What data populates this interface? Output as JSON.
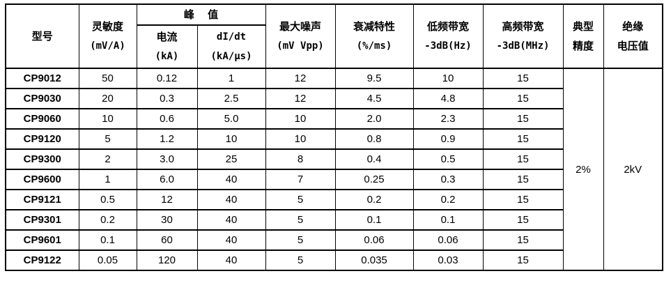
{
  "page": {
    "background_color": "#ffffff",
    "border_color": "#000000",
    "text_color": "#000000"
  },
  "table": {
    "headers": {
      "model": "型号",
      "sensitivity_l1": "灵敏度",
      "sensitivity_l2": "(mV/A)",
      "peak": "峰 值",
      "current_l1": "电流",
      "current_l2": "(kA)",
      "didt_l1": "dI/dt",
      "didt_l2": "(kA/μs)",
      "noise_l1": "最大噪声",
      "noise_l2": "(mV Vpp)",
      "attenuation_l1": "衰减特性",
      "attenuation_l2": "(%/ms)",
      "low_bw_l1": "低频带宽",
      "low_bw_l2": "-3dB(Hz)",
      "high_bw_l1": "高频带宽",
      "high_bw_l2": "-3dB(MHz)",
      "accuracy_l1": "典型",
      "accuracy_l2": "精度",
      "insulation_l1": "绝缘",
      "insulation_l2": "电压值"
    },
    "rows": [
      {
        "model": "CP9012",
        "sensitivity": "50",
        "current": "0.12",
        "didt": "1",
        "noise": "12",
        "attenuation": "9.5",
        "low_bw": "10",
        "high_bw": "15"
      },
      {
        "model": "CP9030",
        "sensitivity": "20",
        "current": "0.3",
        "didt": "2.5",
        "noise": "12",
        "attenuation": "4.5",
        "low_bw": "4.8",
        "high_bw": "15"
      },
      {
        "model": "CP9060",
        "sensitivity": "10",
        "current": "0.6",
        "didt": "5.0",
        "noise": "10",
        "attenuation": "2.0",
        "low_bw": "2.3",
        "high_bw": "15"
      },
      {
        "model": "CP9120",
        "sensitivity": "5",
        "current": "1.2",
        "didt": "10",
        "noise": "10",
        "attenuation": "0.8",
        "low_bw": "0.9",
        "high_bw": "15"
      },
      {
        "model": "CP9300",
        "sensitivity": "2",
        "current": "3.0",
        "didt": "25",
        "noise": "8",
        "attenuation": "0.4",
        "low_bw": "0.5",
        "high_bw": "15"
      },
      {
        "model": "CP9600",
        "sensitivity": "1",
        "current": "6.0",
        "didt": "40",
        "noise": "7",
        "attenuation": "0.25",
        "low_bw": "0.3",
        "high_bw": "15"
      },
      {
        "model": "CP9121",
        "sensitivity": "0.5",
        "current": "12",
        "didt": "40",
        "noise": "5",
        "attenuation": "0.2",
        "low_bw": "0.2",
        "high_bw": "15"
      },
      {
        "model": "CP9301",
        "sensitivity": "0.2",
        "current": "30",
        "didt": "40",
        "noise": "5",
        "attenuation": "0.1",
        "low_bw": "0.1",
        "high_bw": "15"
      },
      {
        "model": "CP9601",
        "sensitivity": "0.1",
        "current": "60",
        "didt": "40",
        "noise": "5",
        "attenuation": "0.06",
        "low_bw": "0.06",
        "high_bw": "15"
      },
      {
        "model": "CP9122",
        "sensitivity": "0.05",
        "current": "120",
        "didt": "40",
        "noise": "5",
        "attenuation": "0.035",
        "low_bw": "0.03",
        "high_bw": "15"
      }
    ],
    "typical_accuracy": "2%",
    "insulation_voltage": "2kV"
  },
  "chart_data": {
    "type": "table",
    "columns": [
      "型号",
      "灵敏度(mV/A)",
      "峰值 电流(kA)",
      "峰值 dI/dt(kA/μs)",
      "最大噪声(mV Vpp)",
      "衰减特性(%/ms)",
      "低频带宽-3dB(Hz)",
      "高频带宽-3dB(MHz)",
      "典型精度",
      "绝缘电压值"
    ],
    "rows": [
      [
        "CP9012",
        "50",
        "0.12",
        "1",
        "12",
        "9.5",
        "10",
        "15",
        "2%",
        "2kV"
      ],
      [
        "CP9030",
        "20",
        "0.3",
        "2.5",
        "12",
        "4.5",
        "4.8",
        "15",
        "2%",
        "2kV"
      ],
      [
        "CP9060",
        "10",
        "0.6",
        "5.0",
        "10",
        "2.0",
        "2.3",
        "15",
        "2%",
        "2kV"
      ],
      [
        "CP9120",
        "5",
        "1.2",
        "10",
        "10",
        "0.8",
        "0.9",
        "15",
        "2%",
        "2kV"
      ],
      [
        "CP9300",
        "2",
        "3.0",
        "25",
        "8",
        "0.4",
        "0.5",
        "15",
        "2%",
        "2kV"
      ],
      [
        "CP9600",
        "1",
        "6.0",
        "40",
        "7",
        "0.25",
        "0.3",
        "15",
        "2%",
        "2kV"
      ],
      [
        "CP9121",
        "0.5",
        "12",
        "40",
        "5",
        "0.2",
        "0.2",
        "15",
        "2%",
        "2kV"
      ],
      [
        "CP9301",
        "0.2",
        "30",
        "40",
        "5",
        "0.1",
        "0.1",
        "15",
        "2%",
        "2kV"
      ],
      [
        "CP9601",
        "0.1",
        "60",
        "40",
        "5",
        "0.06",
        "0.06",
        "15",
        "2%",
        "2kV"
      ],
      [
        "CP9122",
        "0.05",
        "120",
        "40",
        "5",
        "0.035",
        "0.03",
        "15",
        "2%",
        "2kV"
      ]
    ],
    "notes": "典型精度 2% and 绝缘电压值 2kV are merged cells spanning all 10 rows"
  }
}
